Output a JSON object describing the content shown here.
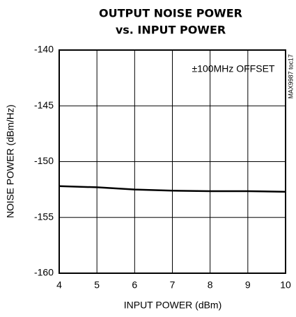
{
  "chart_data": {
    "type": "line",
    "title": "OUTPUT NOISE POWER",
    "subtitle": "vs. INPUT POWER",
    "xlabel": "INPUT POWER (dBm)",
    "ylabel": "NOISE POWER (dBm/Hz)",
    "annotations": [
      "±100MHz OFFSET",
      "MAX9987 toc17"
    ],
    "x": [
      4,
      5,
      6,
      7,
      8,
      9,
      10
    ],
    "series": [
      {
        "color": "#000000",
        "values": [
          -152.2,
          -152.3,
          -152.5,
          -152.6,
          -152.65,
          -152.65,
          -152.7
        ]
      }
    ],
    "xlim": [
      4,
      10
    ],
    "xticks": [
      4,
      5,
      6,
      7,
      8,
      9,
      10
    ],
    "ylim": [
      -160,
      -140
    ],
    "yticks": [
      -160,
      -155,
      -150,
      -145,
      -140
    ],
    "grid": true
  }
}
